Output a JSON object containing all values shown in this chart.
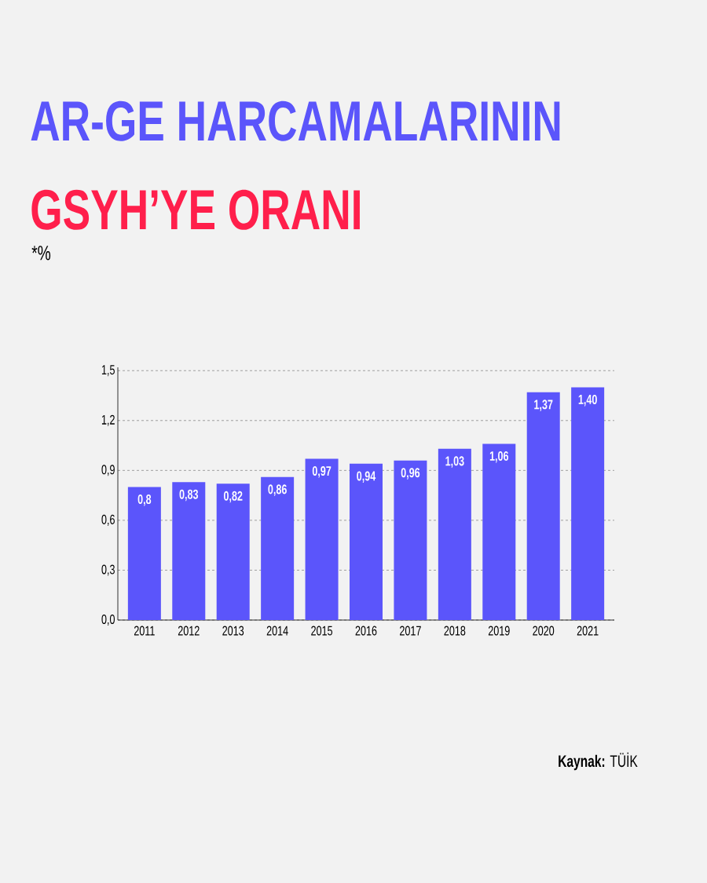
{
  "chart_data": {
    "type": "bar",
    "title": "AR-GE HARCAMALARININ",
    "subtitle": "GSYH’YE ORANI",
    "annotations": [
      "*%",
      "**Kaynak:** TÜİK"
    ],
    "categories": [
      "2011",
      "2012",
      "2013",
      "2014",
      "2015",
      "2016",
      "2017",
      "2018",
      "2019",
      "2020",
      "2021"
    ],
    "values": [
      0.8,
      0.83,
      0.82,
      0.86,
      0.97,
      0.94,
      0.96,
      1.03,
      1.06,
      1.37,
      1.4
    ],
    "value_labels": [
      "0,8",
      "0,83",
      "0,82",
      "0,86",
      "0,97",
      "0,94",
      "0,96",
      "1,03",
      "1,06",
      "1,37",
      "1,40"
    ],
    "color": "#5b55fb",
    "ylim": [
      0,
      1.52
    ],
    "yticks": [
      {
        "value": 0,
        "label": "0,0"
      },
      {
        "value": 0.3,
        "label": "0,3"
      },
      {
        "value": 0.6,
        "label": "0,6"
      },
      {
        "value": 0.9,
        "label": "0,9"
      },
      {
        "value": 1.2,
        "label": "1,2"
      },
      {
        "value": 1.5,
        "label": "1,5"
      }
    ],
    "grid": "y"
  }
}
